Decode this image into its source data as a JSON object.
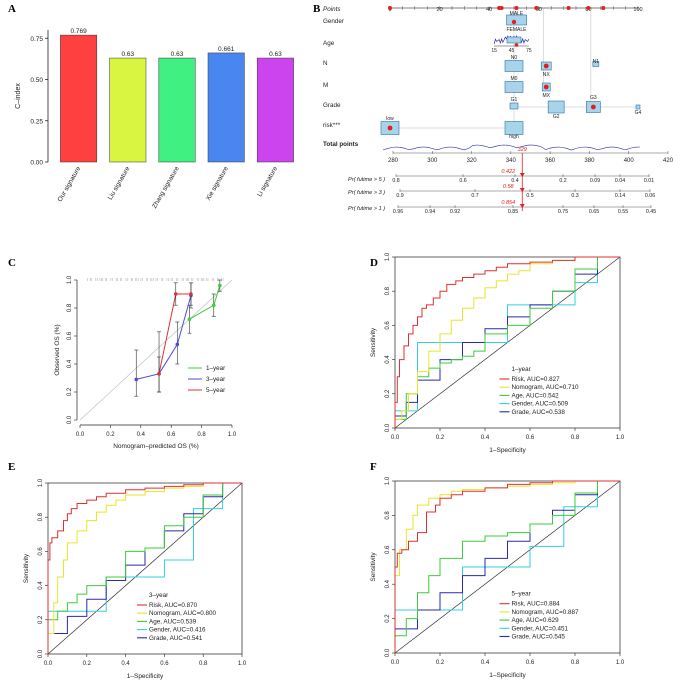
{
  "panel_labels": {
    "a": "A",
    "b": "B",
    "c": "C",
    "d": "D",
    "e": "E",
    "f": "F"
  },
  "chart_data": [
    {
      "panel": "A",
      "type": "bar",
      "title": "",
      "xlabel": "",
      "ylabel": "C–index",
      "ylim": [
        0,
        0.8
      ],
      "yticks": [
        "0.00",
        "0.25",
        "0.50",
        "0.75"
      ],
      "yticks_values": [
        0,
        0.25,
        0.5,
        0.75
      ],
      "categories": [
        "Our signature",
        "Liu signature",
        "Zhang signature",
        "Xie signature",
        "Li signature"
      ],
      "values": [
        0.769,
        0.63,
        0.63,
        0.661,
        0.63
      ],
      "value_labels": [
        "0.769",
        "0.63",
        "0.63",
        "0.661",
        "0.63"
      ],
      "colors": [
        "#ff4040",
        "#d9f542",
        "#40f080",
        "#4a86f0",
        "#cc44ee"
      ]
    },
    {
      "panel": "B",
      "type": "nomogram",
      "title": "",
      "rows": [
        "Points",
        "Gender",
        "Age",
        "N",
        "M",
        "Grade",
        "risk***",
        "Total points",
        "Pr( futime > 5 )",
        "Pr( futime > 3 )",
        "Pr( futime > 1 )"
      ],
      "points_ticks": [
        "0",
        "20",
        "40",
        "60",
        "80",
        "100"
      ],
      "points_values": [
        0,
        20,
        40,
        60,
        80,
        100
      ],
      "total_points_ticks": [
        "280",
        "300",
        "320",
        "340",
        "360",
        "380",
        "400",
        "420"
      ],
      "total_points_values": [
        280,
        300,
        320,
        340,
        360,
        380,
        400,
        420
      ],
      "total_points_highlight": "329",
      "pr5_ticks": [
        "0.8",
        "0.6",
        "0.4",
        "0.2",
        "0.09",
        "0.04",
        "0.01"
      ],
      "pr5_value": "0.422",
      "pr3_ticks": [
        "0.9",
        "0.7",
        "0.5",
        "0.3",
        "0.14",
        "0.06"
      ],
      "pr3_value": "0.58",
      "pr1_ticks": [
        "0.96",
        "0.94",
        "0.92",
        "0.85",
        "0.75",
        "0.65",
        "0.55",
        "0.45"
      ],
      "pr1_value": "0.854",
      "gender_levels": [
        "MALE",
        "FEMALE"
      ],
      "age_ticks": [
        "15",
        "45",
        "75"
      ],
      "n_levels": [
        "N0",
        "NX",
        "N1"
      ],
      "m_levels": [
        "M0",
        "MX"
      ],
      "grade_levels": [
        "G1",
        "G2",
        "G3",
        "G4"
      ],
      "risk_levels": [
        "low",
        "high"
      ]
    },
    {
      "panel": "C",
      "type": "line",
      "title": "",
      "xlabel": "Nomogram–predicted OS (%)",
      "ylabel": "Observed OS (%)",
      "xlim": [
        0,
        1
      ],
      "ylim": [
        0,
        1
      ],
      "ticks": [
        "0.0",
        "0.2",
        "0.4",
        "0.6",
        "0.8",
        "1.0"
      ],
      "tick_values": [
        0,
        0.2,
        0.4,
        0.6,
        0.8,
        1.0
      ],
      "series": [
        {
          "name": "1–year",
          "color": "#3dcc3d",
          "x": [
            0.72,
            0.88,
            0.92
          ],
          "y": [
            0.72,
            0.82,
            0.96
          ],
          "lower": [
            0.62,
            0.74,
            0.92
          ],
          "upper": [
            0.82,
            0.9,
            1.0
          ]
        },
        {
          "name": "3–year",
          "color": "#4b4bd8",
          "x": [
            0.37,
            0.52,
            0.64,
            0.73
          ],
          "y": [
            0.29,
            0.33,
            0.54,
            0.89
          ],
          "lower": [
            0.17,
            0.2,
            0.4,
            0.8
          ],
          "upper": [
            0.5,
            0.63,
            0.7,
            0.98
          ]
        },
        {
          "name": "5–year",
          "color": "#e03030",
          "x": [
            0.52,
            0.63,
            0.73
          ],
          "y": [
            0.33,
            0.9,
            0.9
          ],
          "lower": [
            0.2,
            0.82,
            0.82
          ],
          "upper": [
            0.45,
            0.98,
            0.98
          ]
        }
      ]
    },
    {
      "panel": "D",
      "type": "line",
      "title": "1–year",
      "xlabel": "1–Specificity",
      "ylabel": "Sensitivity",
      "xlim": [
        0,
        1
      ],
      "ylim": [
        0,
        1
      ],
      "ticks": [
        "0.0",
        "0.2",
        "0.4",
        "0.6",
        "0.8",
        "1.0"
      ],
      "tick_values": [
        0,
        0.2,
        0.4,
        0.6,
        0.8,
        1.0
      ],
      "series": [
        {
          "name": "Risk, AUC=0.827",
          "color": "#e03030",
          "x": [
            0,
            0.01,
            0.02,
            0.04,
            0.06,
            0.08,
            0.1,
            0.12,
            0.14,
            0.17,
            0.2,
            0.23,
            0.27,
            0.3,
            0.35,
            0.4,
            0.45,
            0.5,
            0.6,
            0.7,
            0.8,
            0.9,
            1.0
          ],
          "y": [
            0,
            0.15,
            0.3,
            0.4,
            0.48,
            0.55,
            0.6,
            0.65,
            0.7,
            0.72,
            0.76,
            0.8,
            0.84,
            0.86,
            0.88,
            0.9,
            0.92,
            0.94,
            0.96,
            0.97,
            0.98,
            1.0,
            1.0
          ]
        },
        {
          "name": "Nomogram, AUC=0.710",
          "color": "#e6e62a",
          "x": [
            0,
            0.03,
            0.06,
            0.1,
            0.15,
            0.2,
            0.25,
            0.3,
            0.35,
            0.4,
            0.45,
            0.5,
            0.55,
            0.6,
            0.7,
            0.8,
            0.9,
            1.0
          ],
          "y": [
            0,
            0.05,
            0.1,
            0.2,
            0.33,
            0.45,
            0.55,
            0.63,
            0.7,
            0.76,
            0.82,
            0.86,
            0.9,
            0.92,
            0.96,
            0.98,
            1.0,
            1.0
          ]
        },
        {
          "name": "Age, AUC=0.542",
          "color": "#3dcc3d",
          "x": [
            0,
            0.05,
            0.1,
            0.15,
            0.2,
            0.25,
            0.3,
            0.35,
            0.4,
            0.5,
            0.6,
            0.7,
            0.8,
            0.9,
            1.0
          ],
          "y": [
            0,
            0.05,
            0.2,
            0.3,
            0.35,
            0.38,
            0.4,
            0.42,
            0.45,
            0.55,
            0.6,
            0.7,
            0.8,
            0.93,
            1.0
          ]
        },
        {
          "name": "Gender, AUC=0.509",
          "color": "#30d0e0",
          "x": [
            0,
            0.1,
            0.5,
            0.8,
            0.9,
            1.0
          ],
          "y": [
            0,
            0.1,
            0.5,
            0.72,
            0.85,
            1.0
          ]
        },
        {
          "name": "Grade, AUC=0.538",
          "color": "#2828b0",
          "x": [
            0,
            0.05,
            0.1,
            0.2,
            0.3,
            0.4,
            0.5,
            0.6,
            0.7,
            0.8,
            0.9,
            1.0
          ],
          "y": [
            0,
            0.07,
            0.15,
            0.28,
            0.4,
            0.5,
            0.58,
            0.65,
            0.72,
            0.8,
            0.9,
            1.0
          ]
        }
      ]
    },
    {
      "panel": "E",
      "type": "line",
      "title": "3–year",
      "xlabel": "1–Specificity",
      "ylabel": "Sensitivity",
      "xlim": [
        0,
        1
      ],
      "ylim": [
        0,
        1
      ],
      "ticks": [
        "0.0",
        "0.2",
        "0.4",
        "0.6",
        "0.8",
        "1.0"
      ],
      "tick_values": [
        0,
        0.2,
        0.4,
        0.6,
        0.8,
        1.0
      ],
      "series": [
        {
          "name": "Risk, AUC=0.870",
          "color": "#e03030",
          "x": [
            0,
            0.01,
            0.02,
            0.05,
            0.08,
            0.1,
            0.12,
            0.15,
            0.2,
            0.25,
            0.3,
            0.4,
            0.5,
            0.6,
            0.7,
            0.8,
            0.9,
            1.0
          ],
          "y": [
            0,
            0.55,
            0.65,
            0.68,
            0.72,
            0.78,
            0.82,
            0.85,
            0.88,
            0.9,
            0.92,
            0.94,
            0.96,
            0.97,
            0.98,
            0.99,
            1.0,
            1.0
          ]
        },
        {
          "name": "Nomogram, AUC=0.800",
          "color": "#e6e62a",
          "x": [
            0,
            0.03,
            0.05,
            0.08,
            0.1,
            0.15,
            0.2,
            0.25,
            0.3,
            0.35,
            0.4,
            0.5,
            0.6,
            0.7,
            0.8,
            0.9,
            1.0
          ],
          "y": [
            0,
            0.12,
            0.3,
            0.45,
            0.55,
            0.65,
            0.72,
            0.78,
            0.83,
            0.87,
            0.9,
            0.93,
            0.95,
            0.97,
            0.98,
            1.0,
            1.0
          ]
        },
        {
          "name": "Age, AUC=0.539",
          "color": "#3dcc3d",
          "x": [
            0,
            0.05,
            0.1,
            0.15,
            0.2,
            0.3,
            0.4,
            0.5,
            0.6,
            0.7,
            0.8,
            0.9,
            1.0
          ],
          "y": [
            0,
            0.2,
            0.25,
            0.3,
            0.35,
            0.4,
            0.45,
            0.6,
            0.62,
            0.75,
            0.8,
            0.93,
            1.0
          ]
        },
        {
          "name": "Gender, AUC=0.416",
          "color": "#30d0e0",
          "x": [
            0,
            0.3,
            0.6,
            0.75,
            0.9,
            1.0
          ],
          "y": [
            0,
            0.25,
            0.45,
            0.55,
            0.85,
            1.0
          ]
        },
        {
          "name": "Grade, AUC=0.541",
          "color": "#2828b0",
          "x": [
            0,
            0.1,
            0.2,
            0.3,
            0.4,
            0.5,
            0.6,
            0.7,
            0.8,
            0.9,
            1.0
          ],
          "y": [
            0,
            0.12,
            0.22,
            0.32,
            0.43,
            0.52,
            0.62,
            0.72,
            0.82,
            0.92,
            1.0
          ]
        }
      ]
    },
    {
      "panel": "F",
      "type": "line",
      "title": "5–year",
      "xlabel": "1–Specificity",
      "ylabel": "Sensitivity",
      "xlim": [
        0,
        1
      ],
      "ylim": [
        0,
        1
      ],
      "ticks": [
        "0.0",
        "0.2",
        "0.4",
        "0.6",
        "0.8",
        "1.0"
      ],
      "tick_values": [
        0,
        0.2,
        0.4,
        0.6,
        0.8,
        1.0
      ],
      "series": [
        {
          "name": "Risk, AUC=0.884",
          "color": "#e03030",
          "x": [
            0,
            0.01,
            0.03,
            0.06,
            0.1,
            0.14,
            0.18,
            0.2,
            0.25,
            0.3,
            0.4,
            0.5,
            0.6,
            0.7,
            0.8,
            0.9,
            1.0
          ],
          "y": [
            0,
            0.5,
            0.58,
            0.6,
            0.65,
            0.7,
            0.82,
            0.86,
            0.9,
            0.92,
            0.94,
            0.96,
            0.98,
            0.99,
            1.0,
            1.0,
            1.0
          ]
        },
        {
          "name": "Nomogram, AUC=0.887",
          "color": "#e6e62a",
          "x": [
            0,
            0.02,
            0.05,
            0.08,
            0.1,
            0.15,
            0.2,
            0.25,
            0.3,
            0.4,
            0.5,
            0.6,
            0.7,
            0.8,
            0.9,
            1.0
          ],
          "y": [
            0,
            0.45,
            0.6,
            0.72,
            0.8,
            0.86,
            0.9,
            0.92,
            0.94,
            0.95,
            0.96,
            0.97,
            0.98,
            0.99,
            1.0,
            1.0
          ]
        },
        {
          "name": "Age, AUC=0.629",
          "color": "#3dcc3d",
          "x": [
            0,
            0.05,
            0.1,
            0.15,
            0.2,
            0.3,
            0.4,
            0.5,
            0.6,
            0.7,
            0.8,
            0.9,
            1.0
          ],
          "y": [
            0,
            0.1,
            0.2,
            0.35,
            0.45,
            0.55,
            0.65,
            0.68,
            0.7,
            0.75,
            0.8,
            0.93,
            1.0
          ]
        },
        {
          "name": "Gender, AUC=0.451",
          "color": "#30d0e0",
          "x": [
            0,
            0.3,
            0.6,
            0.75,
            0.9,
            1.0
          ],
          "y": [
            0,
            0.25,
            0.5,
            0.62,
            0.85,
            1.0
          ]
        },
        {
          "name": "Grade, AUC=0.545",
          "color": "#2828b0",
          "x": [
            0,
            0.1,
            0.2,
            0.3,
            0.4,
            0.5,
            0.6,
            0.7,
            0.8,
            0.9,
            1.0
          ],
          "y": [
            0,
            0.14,
            0.25,
            0.35,
            0.45,
            0.55,
            0.65,
            0.75,
            0.83,
            0.92,
            1.0
          ]
        }
      ]
    }
  ]
}
